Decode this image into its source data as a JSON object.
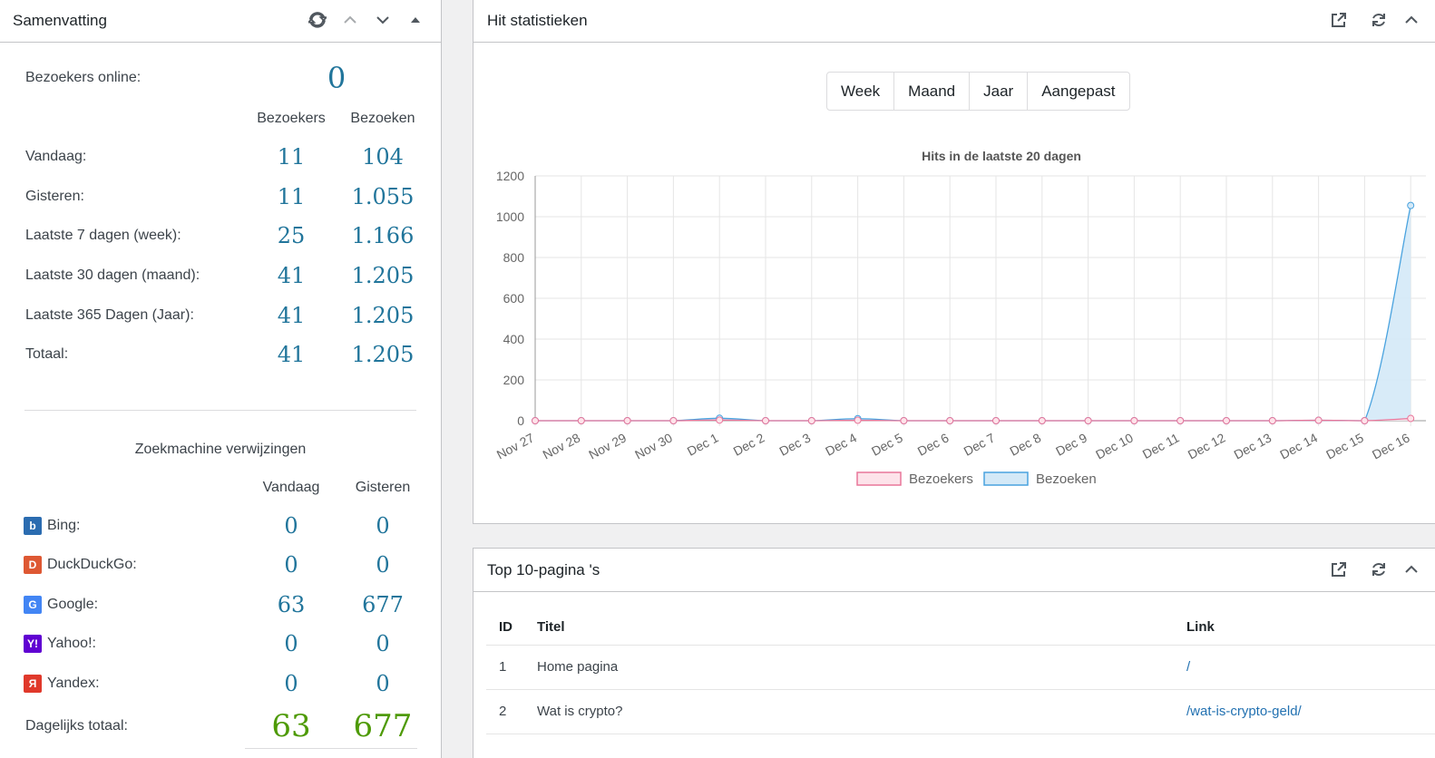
{
  "summary": {
    "title": "Samenvatting",
    "online_label": "Bezoekers online:",
    "online_value": "0",
    "col_visitors": "Bezoekers",
    "col_visits": "Bezoeken",
    "rows": [
      {
        "label": "Vandaag:",
        "visitors": "11",
        "visits": "104"
      },
      {
        "label": "Gisteren:",
        "visitors": "11",
        "visits": "1.055"
      },
      {
        "label": "Laatste 7 dagen (week):",
        "visitors": "25",
        "visits": "1.166"
      },
      {
        "label": "Laatste 30 dagen (maand):",
        "visitors": "41",
        "visits": "1.205"
      },
      {
        "label": "Laatste 365 Dagen (Jaar):",
        "visitors": "41",
        "visits": "1.205"
      },
      {
        "label": "Totaal:",
        "visitors": "41",
        "visits": "1.205"
      }
    ],
    "search_title": "Zoekmachine verwijzingen",
    "col_today": "Vandaag",
    "col_yesterday": "Gisteren",
    "engines": [
      {
        "label": "Bing:",
        "today": "0",
        "yesterday": "0",
        "icon": "bing-icon",
        "color": "#2b6cb0",
        "glyph": "b"
      },
      {
        "label": "DuckDuckGo:",
        "today": "0",
        "yesterday": "0",
        "icon": "duckduckgo-icon",
        "color": "#de5833",
        "glyph": "D"
      },
      {
        "label": "Google:",
        "today": "63",
        "yesterday": "677",
        "icon": "google-icon",
        "color": "#4285f4",
        "glyph": "G"
      },
      {
        "label": "Yahoo!:",
        "today": "0",
        "yesterday": "0",
        "icon": "yahoo-icon",
        "color": "#6001d2",
        "glyph": "Y!"
      },
      {
        "label": "Yandex:",
        "today": "0",
        "yesterday": "0",
        "icon": "yandex-icon",
        "color": "#e0392b",
        "glyph": "Я"
      }
    ],
    "daily_total_label": "Dagelijks totaal:",
    "daily_total_today": "63",
    "daily_total_yesterday": "677"
  },
  "hits": {
    "title": "Hit statistieken",
    "buttons": [
      "Week",
      "Maand",
      "Jaar",
      "Aangepast"
    ]
  },
  "chart_data": {
    "type": "area",
    "title": "Hits in de laatste 20 dagen",
    "x": [
      "Nov 27",
      "Nov 28",
      "Nov 29",
      "Nov 30",
      "Dec 1",
      "Dec 2",
      "Dec 3",
      "Dec 4",
      "Dec 5",
      "Dec 6",
      "Dec 7",
      "Dec 8",
      "Dec 9",
      "Dec 10",
      "Dec 11",
      "Dec 12",
      "Dec 13",
      "Dec 14",
      "Dec 15",
      "Dec 16"
    ],
    "series": [
      {
        "name": "Bezoekers",
        "color": "#e8769a",
        "fill": "#fde3ea",
        "values": [
          0,
          0,
          0,
          0,
          3,
          0,
          0,
          2,
          0,
          0,
          0,
          0,
          0,
          0,
          0,
          0,
          0,
          2,
          0,
          11
        ]
      },
      {
        "name": "Bezoeken",
        "color": "#4aa3df",
        "fill": "#d4e9f7",
        "values": [
          0,
          0,
          0,
          0,
          12,
          0,
          0,
          10,
          0,
          0,
          0,
          0,
          0,
          0,
          0,
          0,
          0,
          2,
          0,
          1055
        ]
      }
    ],
    "y_ticks": [
      0,
      200,
      400,
      600,
      800,
      1000,
      1200
    ],
    "ylim": [
      0,
      1200
    ],
    "grid": true,
    "legend": "bottom"
  },
  "top10": {
    "title": "Top 10-pagina 's",
    "col_id": "ID",
    "col_title": "Titel",
    "col_link": "Link",
    "rows": [
      {
        "id": "1",
        "title": "Home pagina",
        "link": "/"
      },
      {
        "id": "2",
        "title": "Wat is crypto?",
        "link": "/wat-is-crypto-geld/"
      }
    ]
  }
}
